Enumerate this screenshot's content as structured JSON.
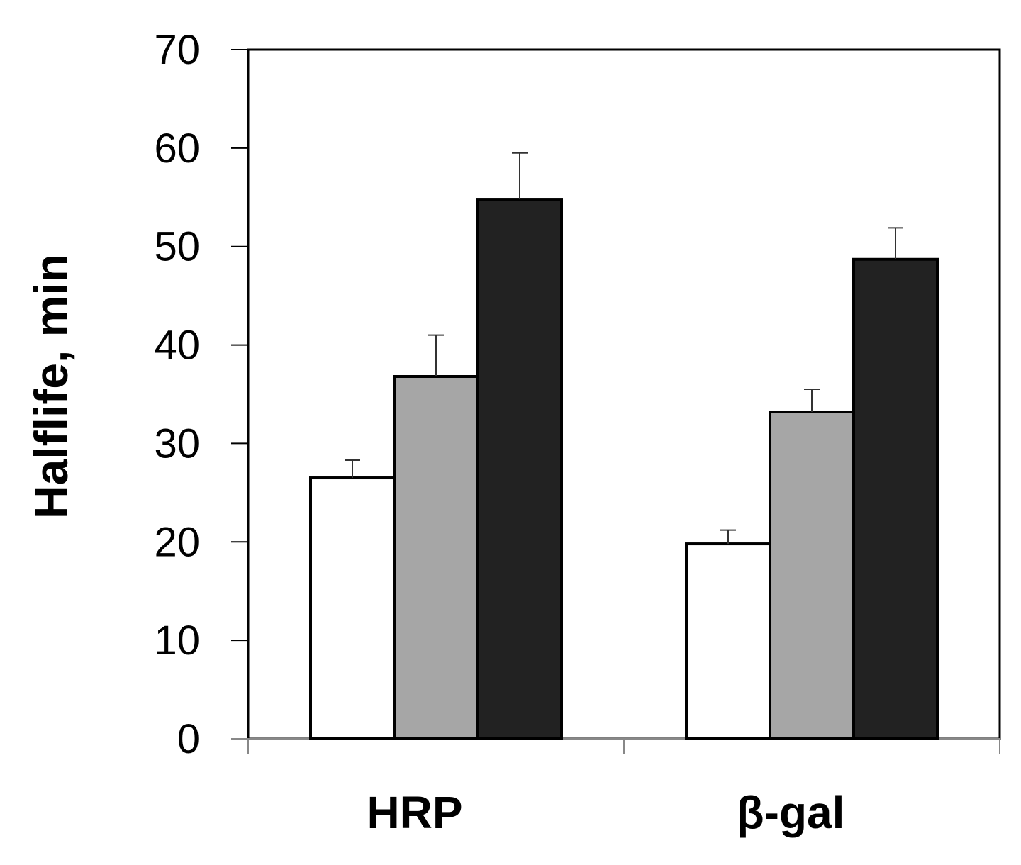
{
  "chart_data": {
    "type": "bar",
    "title": "",
    "xlabel": "",
    "ylabel": "Halflife, min",
    "ylim": [
      0,
      70
    ],
    "yticks": [
      0,
      10,
      20,
      30,
      40,
      50,
      60,
      70
    ],
    "grid": false,
    "legend": "none",
    "categories": [
      "HRP",
      "β-gal"
    ],
    "series": [
      {
        "values": [
          26.5,
          19.8
        ],
        "errors": [
          1.8,
          1.4
        ],
        "color": "#ffffff"
      },
      {
        "values": [
          36.8,
          33.2
        ],
        "errors": [
          4.2,
          2.3
        ],
        "color": "#a6a6a6"
      },
      {
        "values": [
          54.8,
          48.7
        ],
        "errors": [
          4.7,
          3.2
        ],
        "color": "#222222"
      }
    ]
  }
}
